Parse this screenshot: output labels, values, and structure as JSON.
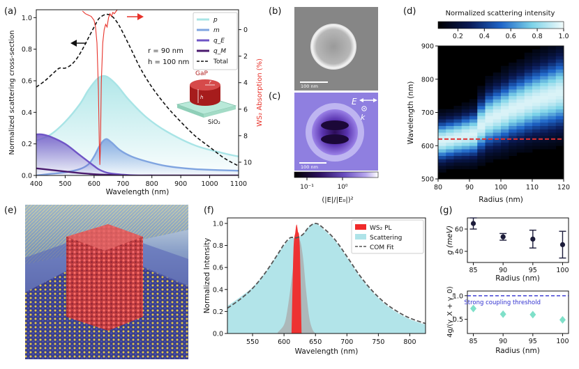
{
  "panel_labels": {
    "a": "(a)",
    "b": "(b)",
    "c": "(c)",
    "d": "(d)",
    "e": "(e)",
    "f": "(f)",
    "g": "(g)"
  },
  "colors": {
    "p": "#a8e4e6",
    "m": "#7fa4e0",
    "qE": "#6f55c6",
    "qM": "#4a1a6e",
    "total": "#111111",
    "ws2": "#e8322a",
    "scatter_fill": "#aee3e8",
    "pl_fill": "#f02a2a",
    "comfit": "#555555",
    "g_points": "#1c1c3a",
    "ratio_points": "#7fe0c9",
    "threshold": "#3030d0"
  },
  "chart_data": [
    {
      "id": "a",
      "type": "line",
      "title": "",
      "xlabel": "Wavelength (nm)",
      "ylabel": "Normalized scattering cross-section",
      "ylabel_right": "WS₂ Absorption (%)",
      "xlim": [
        400,
        1100
      ],
      "ylim": [
        0,
        1.05
      ],
      "ylim_right": [
        -1.5,
        11
      ],
      "x_ticks": [
        "400",
        "500",
        "600",
        "700",
        "800",
        "900",
        "1000",
        "1100"
      ],
      "y_ticks": [
        "0.0",
        "0.2",
        "0.4",
        "0.6",
        "0.8",
        "1.0"
      ],
      "y_ticks_right": [
        "0",
        "2",
        "4",
        "6",
        "8",
        "10"
      ],
      "annotations": [
        "r = 90 nm",
        "h = 100 nm",
        "GaP",
        "SiO₂",
        "r",
        "h"
      ],
      "legend": [
        "p",
        "m",
        "q_E",
        "q_M",
        "Total"
      ],
      "series": [
        {
          "name": "p",
          "x": [
            400,
            450,
            500,
            550,
            580,
            610,
            630,
            650,
            680,
            720,
            780,
            850,
            950,
            1050,
            1100
          ],
          "y": [
            0.22,
            0.26,
            0.34,
            0.45,
            0.54,
            0.61,
            0.63,
            0.62,
            0.57,
            0.48,
            0.37,
            0.28,
            0.19,
            0.14,
            0.12
          ]
        },
        {
          "name": "m",
          "x": [
            400,
            450,
            500,
            550,
            580,
            600,
            620,
            640,
            660,
            690,
            730,
            780,
            850,
            950,
            1100
          ],
          "y": [
            0.0,
            0.01,
            0.02,
            0.04,
            0.07,
            0.12,
            0.19,
            0.23,
            0.21,
            0.16,
            0.12,
            0.09,
            0.06,
            0.04,
            0.03
          ]
        },
        {
          "name": "q_E",
          "x": [
            400,
            420,
            450,
            500,
            550,
            600,
            620,
            650,
            700,
            750,
            800
          ],
          "y": [
            0.26,
            0.26,
            0.245,
            0.2,
            0.13,
            0.06,
            0.035,
            0.015,
            0.005,
            0.0,
            0.0
          ]
        },
        {
          "name": "q_M",
          "x": [
            400,
            450,
            500,
            550,
            600,
            620,
            650,
            700,
            800,
            1100
          ],
          "y": [
            0.045,
            0.035,
            0.025,
            0.015,
            0.008,
            0.006,
            0.004,
            0.0,
            0.0,
            0.0
          ]
        },
        {
          "name": "Total",
          "x": [
            400,
            430,
            460,
            480,
            500,
            520,
            540,
            560,
            580,
            600,
            620,
            650,
            680,
            720,
            760,
            800,
            850,
            900,
            950,
            1000,
            1050,
            1100
          ],
          "y": [
            0.56,
            0.6,
            0.65,
            0.68,
            0.68,
            0.7,
            0.74,
            0.8,
            0.87,
            0.94,
            1.0,
            1.02,
            0.97,
            0.83,
            0.68,
            0.56,
            0.44,
            0.34,
            0.25,
            0.18,
            0.11,
            0.06
          ]
        }
      ],
      "absorption_series": {
        "name": "WS₂ absorption",
        "x": [
          560,
          570,
          580,
          590,
          600,
          605,
          610,
          615,
          618,
          620,
          622,
          625,
          630,
          635,
          640,
          645,
          650,
          655,
          660,
          665,
          670,
          680
        ],
        "y": [
          -1.4,
          -1.2,
          -1.1,
          -1.0,
          -0.7,
          -0.2,
          1.0,
          4.5,
          8.5,
          10.2,
          8.8,
          4.0,
          1.0,
          0.0,
          -0.4,
          -0.2,
          -0.9,
          -1.2,
          -1.0,
          -1.3,
          -1.2,
          -1.5
        ]
      }
    },
    {
      "id": "c",
      "type": "heatmap",
      "title": "",
      "colorbar_label": "(|E|/|E₀|)²",
      "colorbar_ticks": [
        "10⁻¹",
        "10⁰"
      ],
      "annotations": [
        "E",
        "k"
      ],
      "scalebar_b": "100 nm",
      "scalebar_c": "100 nm"
    },
    {
      "id": "d",
      "type": "heatmap",
      "title": "Normalized scattering intensity",
      "xlabel": "Radius (nm)",
      "ylabel": "Wavelength (nm)",
      "xlim": [
        80,
        120
      ],
      "ylim": [
        500,
        900
      ],
      "x_ticks": [
        "80",
        "90",
        "100",
        "110",
        "120"
      ],
      "y_ticks": [
        "500",
        "600",
        "700",
        "800",
        "900"
      ],
      "colorbar_ticks": [
        "0.2",
        "0.4",
        "0.6",
        "0.8",
        "1.0"
      ],
      "reference_line_wavelength": 620,
      "radius_columns": [
        80,
        82.5,
        85,
        87.5,
        90,
        92.5,
        95,
        97.5,
        100,
        102.5,
        105,
        107.5,
        110,
        112.5,
        115,
        117.5
      ],
      "peak_wavelength": [
        615,
        620,
        625,
        630,
        635,
        660,
        680,
        690,
        700,
        712,
        720,
        730,
        738,
        745,
        752,
        760
      ],
      "peak_width": [
        55,
        55,
        55,
        58,
        60,
        70,
        75,
        78,
        80,
        82,
        84,
        86,
        88,
        90,
        92,
        94
      ]
    },
    {
      "id": "f",
      "type": "area",
      "title": "",
      "xlabel": "Wavelength (nm)",
      "ylabel": "Normalized Intensity",
      "xlim": [
        510,
        825
      ],
      "ylim": [
        0,
        1.05
      ],
      "x_ticks": [
        "550",
        "600",
        "650",
        "700",
        "750",
        "800"
      ],
      "y_ticks": [
        "0.0",
        "0.2",
        "0.4",
        "0.6",
        "0.8",
        "1.0"
      ],
      "legend": [
        "WS₂ PL",
        "Scattering",
        "COM Fit"
      ],
      "series": [
        {
          "name": "Scattering",
          "x": [
            510,
            530,
            550,
            570,
            590,
            600,
            610,
            620,
            630,
            640,
            650,
            660,
            680,
            700,
            720,
            740,
            760,
            780,
            800,
            825
          ],
          "y": [
            0.25,
            0.33,
            0.42,
            0.55,
            0.72,
            0.8,
            0.86,
            0.87,
            0.9,
            0.97,
            1.0,
            0.96,
            0.85,
            0.69,
            0.52,
            0.38,
            0.27,
            0.19,
            0.13,
            0.08
          ]
        },
        {
          "name": "COM Fit",
          "x": [
            510,
            530,
            550,
            570,
            590,
            600,
            610,
            620,
            630,
            640,
            650,
            660,
            680,
            700,
            720,
            740,
            760,
            780,
            800,
            825
          ],
          "y": [
            0.23,
            0.31,
            0.41,
            0.55,
            0.72,
            0.81,
            0.87,
            0.87,
            0.9,
            0.97,
            1.0,
            0.97,
            0.86,
            0.7,
            0.53,
            0.39,
            0.28,
            0.2,
            0.14,
            0.09
          ]
        },
        {
          "name": "Filtered PL (grey)",
          "x": [
            590,
            600,
            605,
            610,
            615,
            620,
            625,
            630,
            635,
            640,
            645,
            650
          ],
          "y": [
            0.01,
            0.08,
            0.2,
            0.4,
            0.62,
            0.8,
            0.85,
            0.7,
            0.4,
            0.15,
            0.04,
            0.0
          ]
        },
        {
          "name": "WS₂ PL",
          "x": [
            612,
            615,
            618,
            620,
            622,
            625,
            628
          ],
          "y": [
            0.0,
            0.75,
            0.92,
            0.99,
            0.93,
            0.8,
            0.0
          ]
        }
      ]
    },
    {
      "id": "g_top",
      "type": "scatter",
      "xlabel": "Radius (nm)",
      "ylabel": "g (meV)",
      "xlim": [
        84,
        101
      ],
      "ylim": [
        30,
        70
      ],
      "x_ticks": [
        "85",
        "90",
        "95",
        "100"
      ],
      "y_ticks": [
        "40",
        "60"
      ],
      "x": [
        85,
        90,
        95,
        100
      ],
      "y": [
        65,
        53,
        51,
        46
      ],
      "err": [
        5,
        3,
        8,
        12
      ]
    },
    {
      "id": "g_bottom",
      "type": "scatter",
      "xlabel": "Radius (nm)",
      "ylabel": "4g/(γ_X + γ_0)",
      "xlim": [
        84,
        101
      ],
      "ylim": [
        0.2,
        1.1
      ],
      "x_ticks": [
        "85",
        "90",
        "95",
        "100"
      ],
      "y_ticks": [
        "0.5",
        "1.0"
      ],
      "x": [
        85,
        90,
        95,
        100
      ],
      "y": [
        0.73,
        0.61,
        0.6,
        0.49
      ],
      "threshold": 1.0,
      "threshold_label": "Strong coupling threshold"
    }
  ]
}
